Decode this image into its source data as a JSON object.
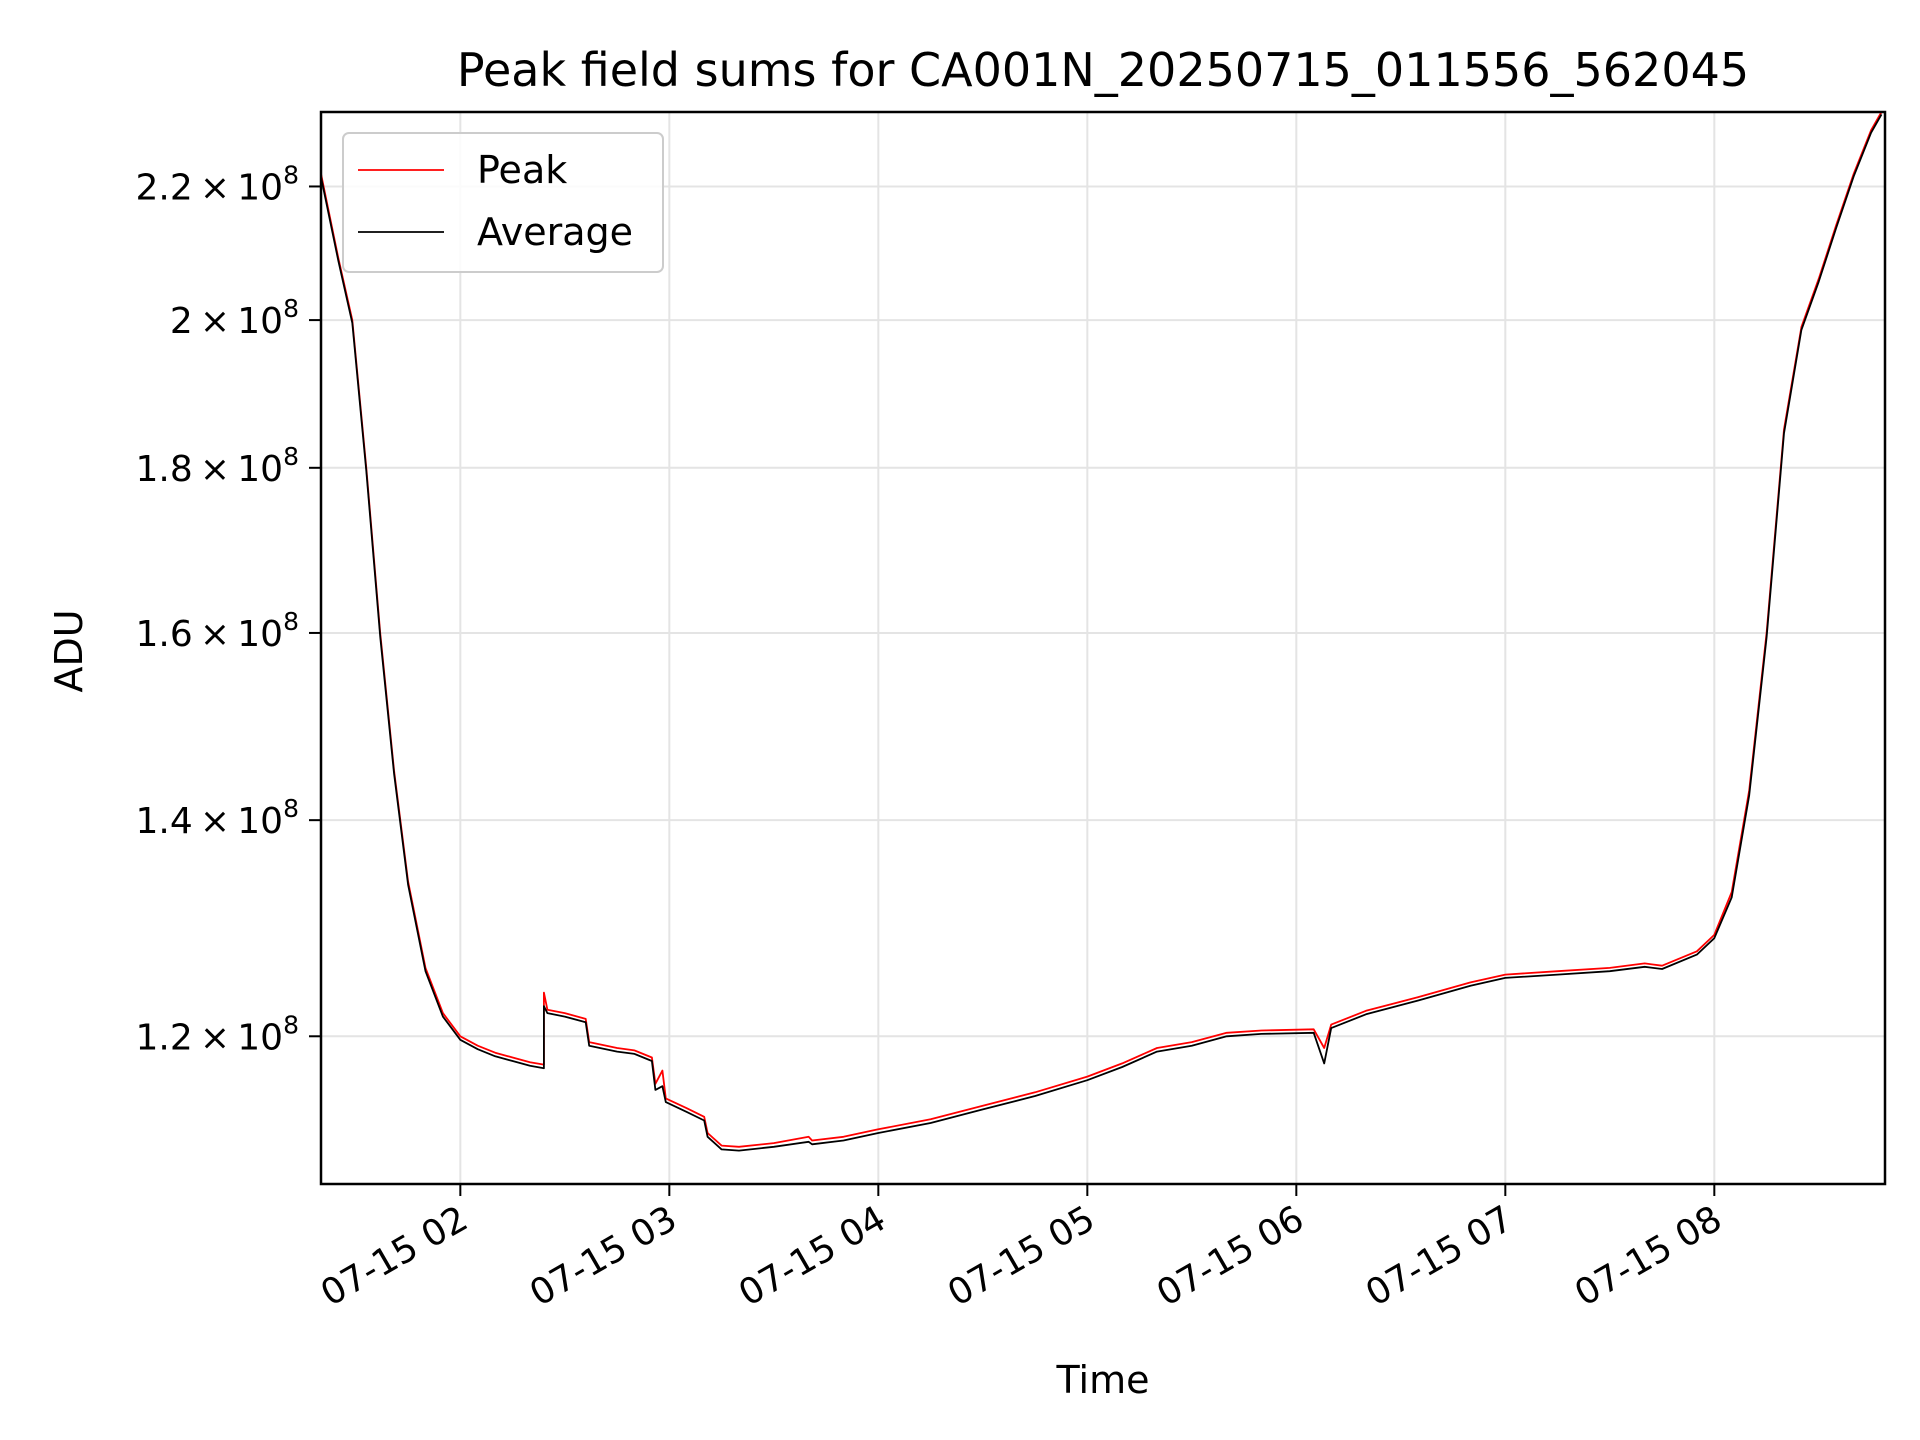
{
  "chart_data": {
    "type": "line",
    "title": "Peak field sums for CA001N_20250715_011556_562045",
    "xlabel": "Time",
    "ylabel": "ADU",
    "y_scale": "log",
    "x_range": [
      "2025-07-15 01:20",
      "2025-07-15 08:49"
    ],
    "ylim": [
      108000000,
      232000000
    ],
    "grid": true,
    "legend_position": "upper-left",
    "x_ticks": [
      {
        "label": "07-15 02",
        "time": "2025-07-15 02:00"
      },
      {
        "label": "07-15 03",
        "time": "2025-07-15 03:00"
      },
      {
        "label": "07-15 04",
        "time": "2025-07-15 04:00"
      },
      {
        "label": "07-15 05",
        "time": "2025-07-15 05:00"
      },
      {
        "label": "07-15 06",
        "time": "2025-07-15 06:00"
      },
      {
        "label": "07-15 07",
        "time": "2025-07-15 07:00"
      },
      {
        "label": "07-15 08",
        "time": "2025-07-15 08:00"
      }
    ],
    "y_ticks": [
      {
        "mantissa": "1.2",
        "exponent": "8",
        "value": 120000000
      },
      {
        "mantissa": "1.4",
        "exponent": "8",
        "value": 140000000
      },
      {
        "mantissa": "1.6",
        "exponent": "8",
        "value": 160000000
      },
      {
        "mantissa": "1.8",
        "exponent": "8",
        "value": 180000000
      },
      {
        "mantissa": "2",
        "exponent": "8",
        "value": 200000000
      },
      {
        "mantissa": "2.2",
        "exponent": "8",
        "value": 220000000
      }
    ],
    "series": [
      {
        "name": "Peak",
        "color": "#ff0000",
        "points": [
          [
            "2025-07-15 01:20",
            222000000
          ],
          [
            "2025-07-15 01:25",
            209000000
          ],
          [
            "2025-07-15 01:29",
            200000000
          ],
          [
            "2025-07-15 01:33",
            180000000
          ],
          [
            "2025-07-15 01:37",
            160000000
          ],
          [
            "2025-07-15 01:41",
            145000000
          ],
          [
            "2025-07-15 01:45",
            134000000
          ],
          [
            "2025-07-15 01:50",
            126000000
          ],
          [
            "2025-07-15 01:55",
            122000000
          ],
          [
            "2025-07-15 02:00",
            120000000
          ],
          [
            "2025-07-15 02:05",
            119200000
          ],
          [
            "2025-07-15 02:10",
            118600000
          ],
          [
            "2025-07-15 02:15",
            118200000
          ],
          [
            "2025-07-15 02:20",
            117800000
          ],
          [
            "2025-07-15 02:24",
            117600000
          ],
          [
            "2025-07-15 02:24",
            123800000
          ],
          [
            "2025-07-15 02:25",
            122300000
          ],
          [
            "2025-07-15 02:30",
            122000000
          ],
          [
            "2025-07-15 02:36",
            121500000
          ],
          [
            "2025-07-15 02:37",
            119500000
          ],
          [
            "2025-07-15 02:45",
            119000000
          ],
          [
            "2025-07-15 02:50",
            118800000
          ],
          [
            "2025-07-15 02:55",
            118200000
          ],
          [
            "2025-07-15 02:56",
            116000000
          ],
          [
            "2025-07-15 02:58",
            117100000
          ],
          [
            "2025-07-15 02:59",
            114800000
          ],
          [
            "2025-07-15 03:05",
            114000000
          ],
          [
            "2025-07-15 03:10",
            113300000
          ],
          [
            "2025-07-15 03:11",
            112000000
          ],
          [
            "2025-07-15 03:15",
            111000000
          ],
          [
            "2025-07-15 03:20",
            110900000
          ],
          [
            "2025-07-15 03:30",
            111200000
          ],
          [
            "2025-07-15 03:40",
            111700000
          ],
          [
            "2025-07-15 03:41",
            111400000
          ],
          [
            "2025-07-15 03:50",
            111700000
          ],
          [
            "2025-07-15 04:00",
            112300000
          ],
          [
            "2025-07-15 04:15",
            113100000
          ],
          [
            "2025-07-15 04:30",
            114200000
          ],
          [
            "2025-07-15 04:45",
            115300000
          ],
          [
            "2025-07-15 05:00",
            116600000
          ],
          [
            "2025-07-15 05:10",
            117700000
          ],
          [
            "2025-07-15 05:20",
            119000000
          ],
          [
            "2025-07-15 05:30",
            119500000
          ],
          [
            "2025-07-15 05:40",
            120300000
          ],
          [
            "2025-07-15 05:50",
            120500000
          ],
          [
            "2025-07-15 06:05",
            120600000
          ],
          [
            "2025-07-15 06:08",
            119000000
          ],
          [
            "2025-07-15 06:10",
            121000000
          ],
          [
            "2025-07-15 06:20",
            122200000
          ],
          [
            "2025-07-15 06:35",
            123400000
          ],
          [
            "2025-07-15 06:50",
            124700000
          ],
          [
            "2025-07-15 07:00",
            125400000
          ],
          [
            "2025-07-15 07:15",
            125700000
          ],
          [
            "2025-07-15 07:30",
            126000000
          ],
          [
            "2025-07-15 07:40",
            126400000
          ],
          [
            "2025-07-15 07:45",
            126200000
          ],
          [
            "2025-07-15 07:55",
            127500000
          ],
          [
            "2025-07-15 08:00",
            129000000
          ],
          [
            "2025-07-15 08:05",
            133000000
          ],
          [
            "2025-07-15 08:10",
            143000000
          ],
          [
            "2025-07-15 08:15",
            160000000
          ],
          [
            "2025-07-15 08:20",
            185000000
          ],
          [
            "2025-07-15 08:25",
            199000000
          ],
          [
            "2025-07-15 08:30",
            206000000
          ],
          [
            "2025-07-15 08:35",
            214000000
          ],
          [
            "2025-07-15 08:40",
            222000000
          ],
          [
            "2025-07-15 08:45",
            229000000
          ],
          [
            "2025-07-15 08:48",
            232000000
          ]
        ]
      },
      {
        "name": "Average",
        "color": "#000000",
        "points": [
          [
            "2025-07-15 01:20",
            221500000
          ],
          [
            "2025-07-15 01:25",
            208600000
          ],
          [
            "2025-07-15 01:29",
            199600000
          ],
          [
            "2025-07-15 01:33",
            179600000
          ],
          [
            "2025-07-15 01:37",
            159600000
          ],
          [
            "2025-07-15 01:41",
            144700000
          ],
          [
            "2025-07-15 01:45",
            133700000
          ],
          [
            "2025-07-15 01:50",
            125700000
          ],
          [
            "2025-07-15 01:55",
            121700000
          ],
          [
            "2025-07-15 02:00",
            119700000
          ],
          [
            "2025-07-15 02:05",
            118900000
          ],
          [
            "2025-07-15 02:10",
            118300000
          ],
          [
            "2025-07-15 02:15",
            117900000
          ],
          [
            "2025-07-15 02:20",
            117500000
          ],
          [
            "2025-07-15 02:24",
            117300000
          ],
          [
            "2025-07-15 02:24",
            122600000
          ],
          [
            "2025-07-15 02:25",
            122000000
          ],
          [
            "2025-07-15 02:30",
            121700000
          ],
          [
            "2025-07-15 02:36",
            121200000
          ],
          [
            "2025-07-15 02:37",
            119200000
          ],
          [
            "2025-07-15 02:45",
            118700000
          ],
          [
            "2025-07-15 02:50",
            118500000
          ],
          [
            "2025-07-15 02:55",
            117900000
          ],
          [
            "2025-07-15 02:56",
            115500000
          ],
          [
            "2025-07-15 02:58",
            115800000
          ],
          [
            "2025-07-15 02:59",
            114500000
          ],
          [
            "2025-07-15 03:05",
            113700000
          ],
          [
            "2025-07-15 03:10",
            113000000
          ],
          [
            "2025-07-15 03:11",
            111700000
          ],
          [
            "2025-07-15 03:15",
            110700000
          ],
          [
            "2025-07-15 03:20",
            110600000
          ],
          [
            "2025-07-15 03:30",
            110900000
          ],
          [
            "2025-07-15 03:40",
            111300000
          ],
          [
            "2025-07-15 03:41",
            111100000
          ],
          [
            "2025-07-15 03:50",
            111400000
          ],
          [
            "2025-07-15 04:00",
            112000000
          ],
          [
            "2025-07-15 04:15",
            112800000
          ],
          [
            "2025-07-15 04:30",
            113900000
          ],
          [
            "2025-07-15 04:45",
            115000000
          ],
          [
            "2025-07-15 05:00",
            116300000
          ],
          [
            "2025-07-15 05:10",
            117400000
          ],
          [
            "2025-07-15 05:20",
            118700000
          ],
          [
            "2025-07-15 05:30",
            119200000
          ],
          [
            "2025-07-15 05:40",
            120000000
          ],
          [
            "2025-07-15 05:50",
            120200000
          ],
          [
            "2025-07-15 06:05",
            120300000
          ],
          [
            "2025-07-15 06:08",
            117700000
          ],
          [
            "2025-07-15 06:10",
            120700000
          ],
          [
            "2025-07-15 06:20",
            121900000
          ],
          [
            "2025-07-15 06:35",
            123100000
          ],
          [
            "2025-07-15 06:50",
            124400000
          ],
          [
            "2025-07-15 07:00",
            125100000
          ],
          [
            "2025-07-15 07:15",
            125400000
          ],
          [
            "2025-07-15 07:30",
            125700000
          ],
          [
            "2025-07-15 07:40",
            126100000
          ],
          [
            "2025-07-15 07:45",
            125900000
          ],
          [
            "2025-07-15 07:55",
            127200000
          ],
          [
            "2025-07-15 08:00",
            128700000
          ],
          [
            "2025-07-15 08:05",
            132500000
          ],
          [
            "2025-07-15 08:10",
            142500000
          ],
          [
            "2025-07-15 08:15",
            159500000
          ],
          [
            "2025-07-15 08:20",
            184500000
          ],
          [
            "2025-07-15 08:25",
            198600000
          ],
          [
            "2025-07-15 08:30",
            205600000
          ],
          [
            "2025-07-15 08:35",
            213600000
          ],
          [
            "2025-07-15 08:40",
            221600000
          ],
          [
            "2025-07-15 08:45",
            228600000
          ],
          [
            "2025-07-15 08:48",
            231600000
          ]
        ]
      }
    ]
  }
}
